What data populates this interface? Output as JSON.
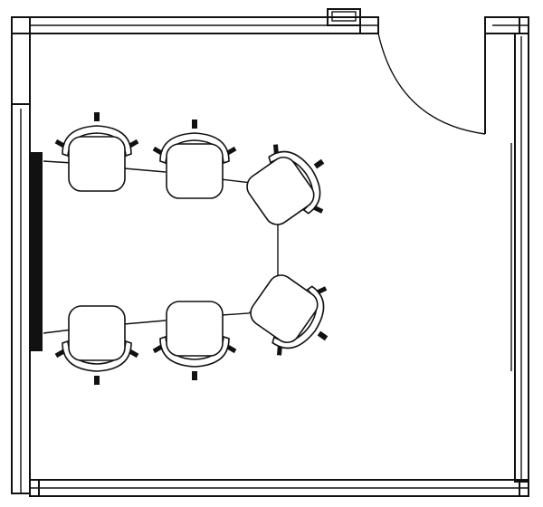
{
  "plan": {
    "chair_count": 6,
    "chairs": [
      {
        "id": "chair-1",
        "group": "top-row",
        "position": 1
      },
      {
        "id": "chair-2",
        "group": "top-row",
        "position": 2
      },
      {
        "id": "chair-3",
        "group": "top-row",
        "position": 3
      },
      {
        "id": "chair-4",
        "group": "bottom-row",
        "position": 1
      },
      {
        "id": "chair-5",
        "group": "bottom-row",
        "position": 2
      },
      {
        "id": "chair-6",
        "group": "bottom-row",
        "position": 3
      }
    ],
    "colors": {
      "line": "#111111",
      "background": "#ffffff"
    }
  }
}
